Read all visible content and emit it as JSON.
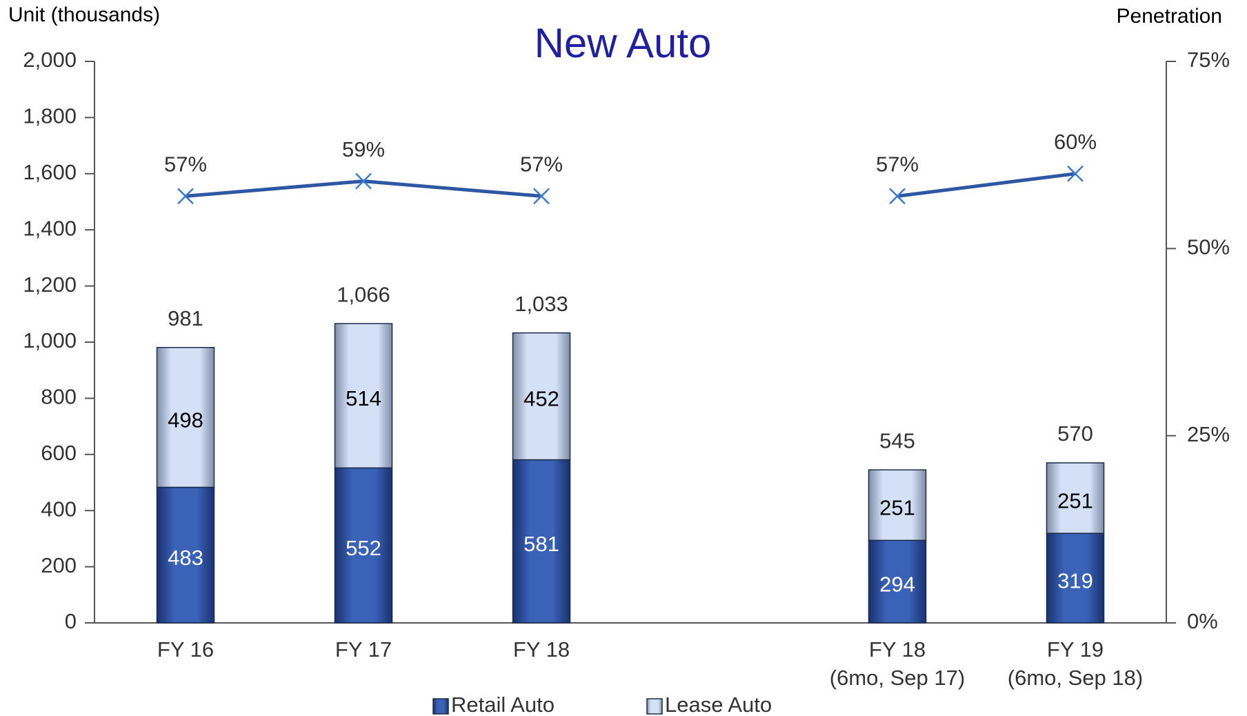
{
  "chart_data": {
    "type": "bar",
    "title": "New Auto",
    "y_label": "Unit (thousands)",
    "y2_label": "Penetration",
    "stacked": true,
    "categories": [
      [
        "FY 16"
      ],
      [
        "FY 17"
      ],
      [
        "FY 18"
      ],
      null,
      [
        "FY 18",
        "(6mo, Sep 17)"
      ],
      [
        "FY 19",
        "(6mo, Sep 18)"
      ]
    ],
    "series": [
      {
        "name": "Retail Auto",
        "type": "bar",
        "color": "#2f55a4",
        "label_color": "#ffffff",
        "values": [
          483,
          552,
          581,
          null,
          294,
          319
        ]
      },
      {
        "name": "Lease Auto",
        "type": "bar",
        "color": "#c7d6f0",
        "label_color": "#000000",
        "values": [
          498,
          514,
          452,
          null,
          251,
          251
        ]
      },
      {
        "type": "line",
        "axis": "y2",
        "color": "#2e57a3",
        "values": [
          57,
          59,
          57,
          null,
          57,
          60
        ],
        "value_labels": [
          "57%",
          "59%",
          "57%",
          null,
          "57%",
          "60%"
        ]
      }
    ],
    "totals": [
      981,
      1066,
      1033,
      null,
      545,
      570
    ],
    "total_labels": [
      "981",
      "1,066",
      "1,033",
      null,
      "545",
      "570"
    ],
    "ylim": [
      0,
      2000
    ],
    "yticks": [
      0,
      200,
      400,
      600,
      800,
      {
        "value": 1000,
        "label": "1,000"
      },
      {
        "value": 1200,
        "label": "1,200"
      },
      {
        "value": 1400,
        "label": "1,400"
      },
      {
        "value": 1600,
        "label": "1,600"
      },
      {
        "value": 1800,
        "label": "1,800"
      },
      {
        "value": 2000,
        "label": "2,000"
      }
    ],
    "y2lim": [
      0,
      75
    ],
    "y2ticks": [
      {
        "value": 0,
        "label": "0%"
      },
      {
        "value": 25,
        "label": "25%"
      },
      {
        "value": 50,
        "label": "50%"
      },
      {
        "value": 75,
        "label": "75%"
      }
    ],
    "grid": false,
    "legend": "bottom"
  }
}
